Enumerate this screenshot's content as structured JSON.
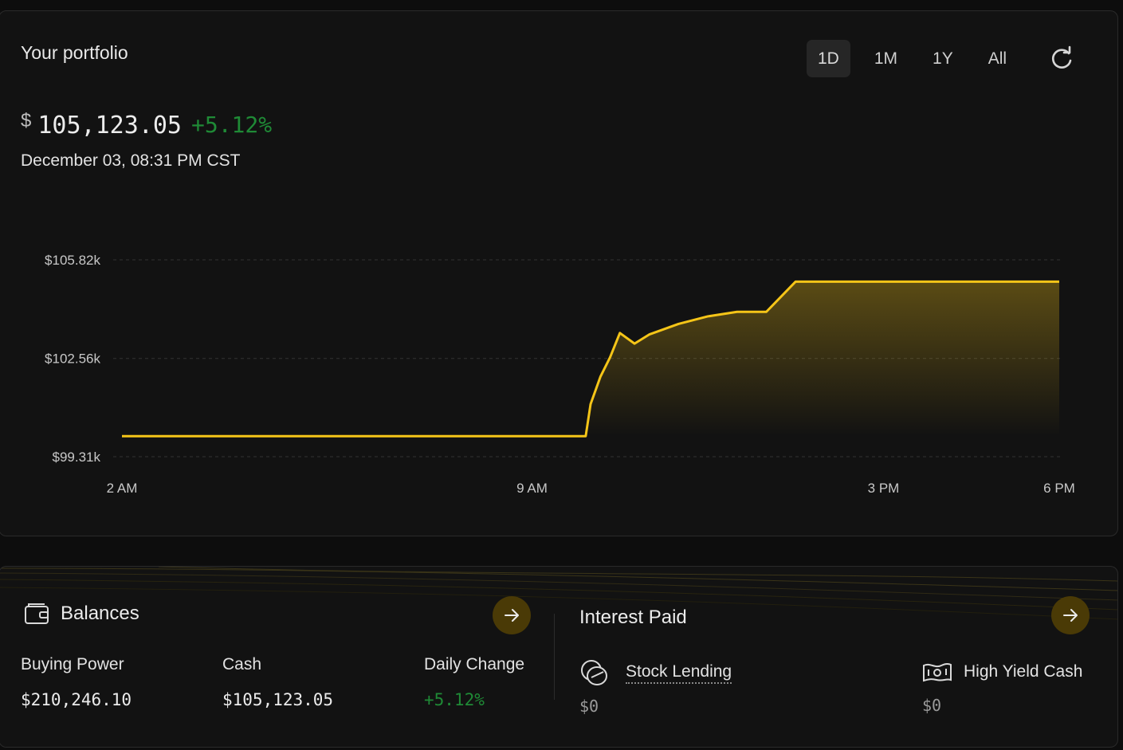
{
  "portfolio": {
    "title": "Your portfolio",
    "currency": "$",
    "amount": "105,123.05",
    "change": "+5.12%",
    "date": "December 03, 08:31 PM CST",
    "ranges": [
      "1D",
      "1M",
      "1Y",
      "All"
    ],
    "active_range": "1D",
    "refresh_icon": "refresh-icon"
  },
  "chart_data": {
    "type": "area",
    "y_ticks": [
      "$105.82k",
      "$102.56k",
      "$99.31k"
    ],
    "y_tick_values": [
      105.82,
      102.56,
      99.31
    ],
    "x_ticks": [
      "2 AM",
      "9 AM",
      "3 PM",
      "6 PM"
    ],
    "ylim": [
      99.31,
      105.82
    ],
    "grid": true,
    "line_color": "#f5c518",
    "x": [
      "2 AM",
      "9:55 AM",
      "10:00 AM",
      "10:10 AM",
      "10:20 AM",
      "10:30 AM",
      "10:45 AM",
      "11:00 AM",
      "11:30 AM",
      "12:00 PM",
      "12:30 PM",
      "1:00 PM",
      "1:30 PM",
      "6 PM"
    ],
    "values": [
      99.99,
      99.99,
      101.05,
      101.95,
      102.6,
      103.4,
      103.05,
      103.35,
      103.7,
      103.95,
      104.1,
      104.1,
      105.1,
      105.1
    ]
  },
  "balances": {
    "title": "Balances",
    "wallet_icon": "wallet-icon",
    "items": [
      {
        "label": "Buying Power",
        "value": "$210,246.10"
      },
      {
        "label": "Cash",
        "value": "$105,123.05"
      },
      {
        "label": "Daily Change",
        "value": "+5.12%"
      }
    ]
  },
  "interest": {
    "title": "Interest Paid",
    "stock_lending": {
      "label": "Stock Lending",
      "value": "$0"
    },
    "high_yield_cash": {
      "label": "High Yield Cash",
      "value": "$0"
    }
  },
  "colors": {
    "accent": "#f5c518",
    "positive": "#1f8a36",
    "arrow_button": "#4a3a06"
  }
}
